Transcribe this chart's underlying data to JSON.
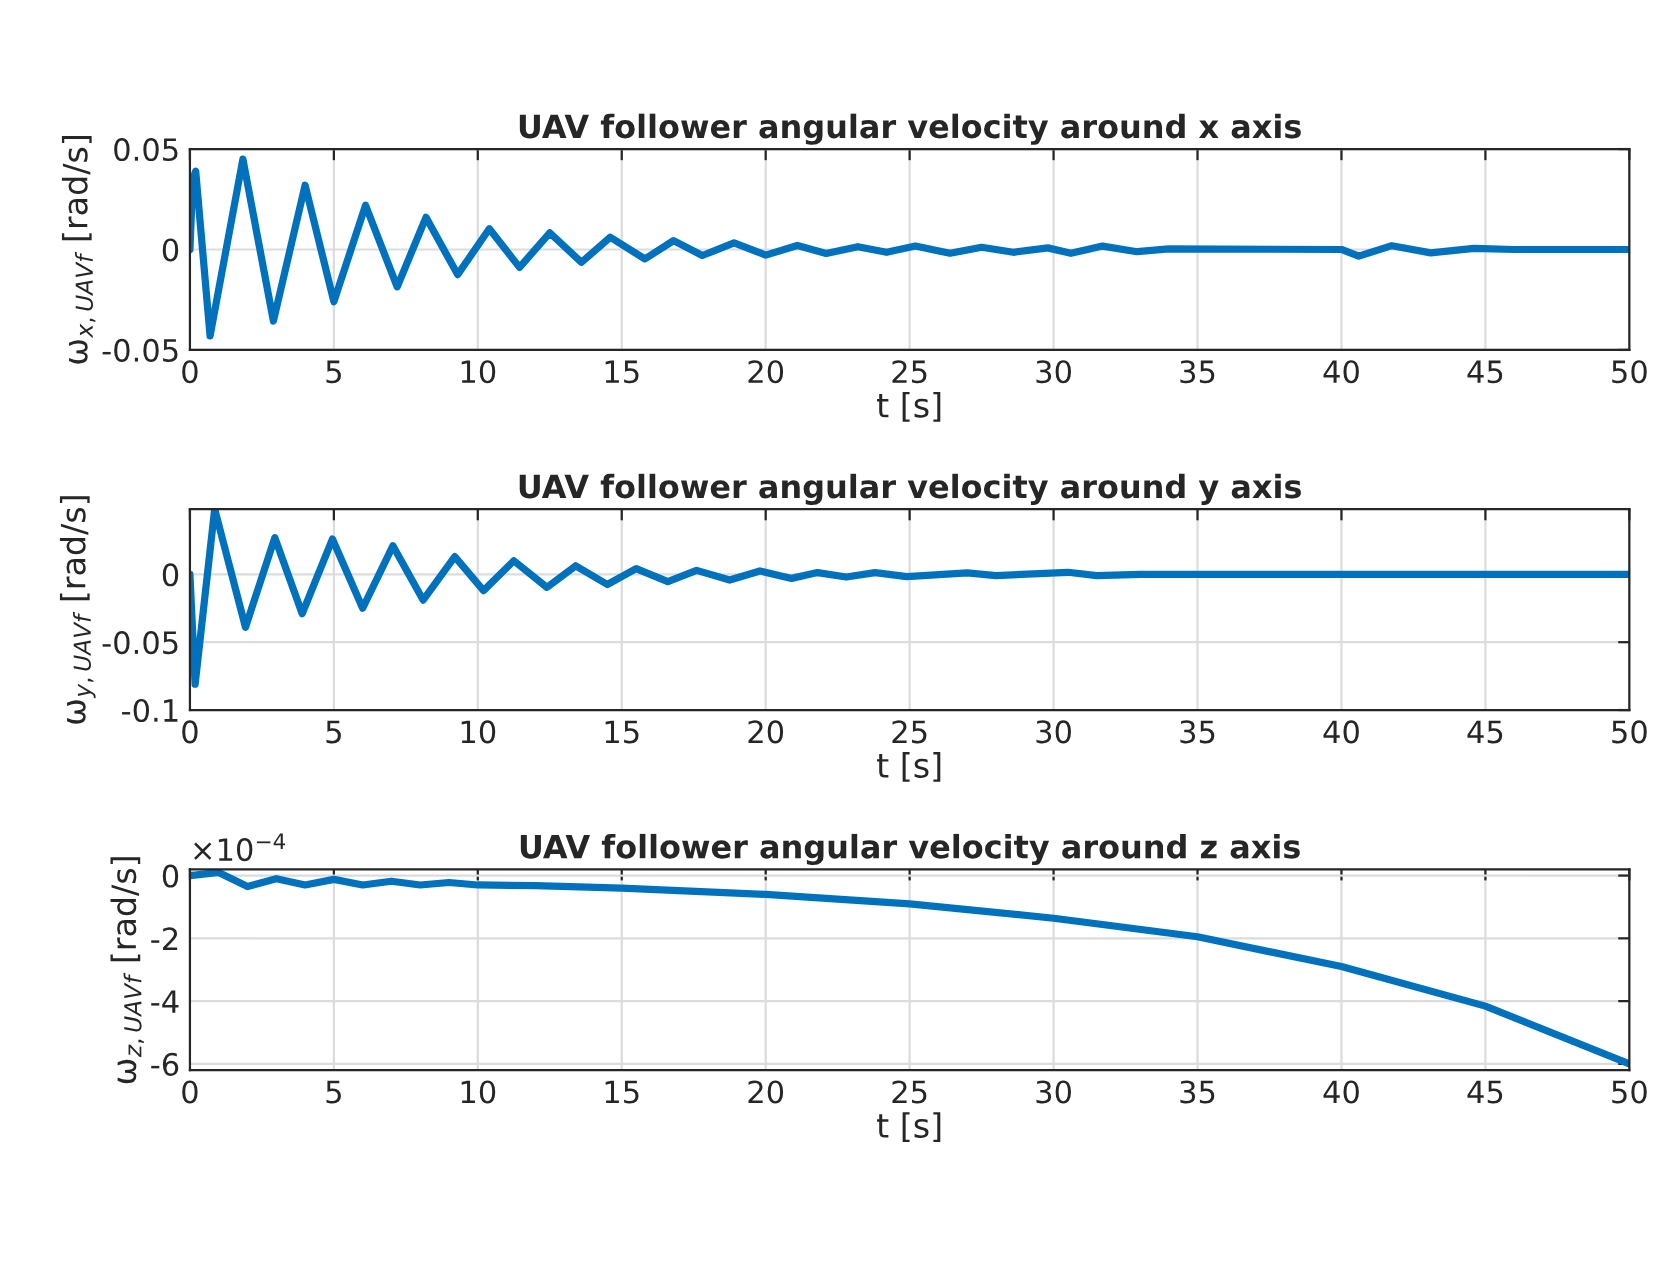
{
  "chart_data": [
    {
      "type": "line",
      "title": "UAV follower angular velocity around x axis",
      "xlabel": "t [s]",
      "ylabel": "ω$_{x,UAVf}$ [rad/s]",
      "grid": true,
      "xlim": [
        0,
        50
      ],
      "ylim": [
        -0.05,
        0.05
      ],
      "xticks": [
        0,
        5,
        10,
        15,
        20,
        25,
        30,
        35,
        40,
        45,
        50
      ],
      "yticks": [
        -0.05,
        0,
        0.05
      ],
      "series": [
        {
          "color": "#0072bd",
          "x": [
            0,
            0.1,
            0.2,
            0.7,
            1.84,
            2.9,
            4.0,
            5.0,
            6.1,
            7.2,
            8.2,
            9.3,
            10.4,
            11.45,
            12.5,
            13.6,
            14.6,
            15.8,
            16.8,
            17.8,
            18.9,
            20.0,
            21.1,
            22.1,
            23.2,
            24.2,
            25.2,
            26.4,
            27.5,
            28.6,
            29.8,
            30.6,
            31.7,
            32.9,
            34.0,
            40.0,
            40.6,
            41.75,
            43.1,
            44.6,
            46.0,
            50
          ],
          "values": [
            0,
            0.035,
            0.039,
            -0.043,
            0.045,
            -0.0356,
            0.032,
            -0.026,
            0.022,
            -0.0186,
            0.016,
            -0.0125,
            0.0103,
            -0.0089,
            0.0083,
            -0.0064,
            0.0061,
            -0.0047,
            0.0044,
            -0.003,
            0.0033,
            -0.0028,
            0.002,
            -0.002,
            0.0014,
            -0.0014,
            0.0017,
            -0.0019,
            0.0011,
            -0.0014,
            0.0008,
            -0.0019,
            0.0017,
            -0.0011,
            0.0003,
            0,
            -0.0033,
            0.0019,
            -0.0017,
            0.0006,
            0,
            0
          ]
        }
      ]
    },
    {
      "type": "line",
      "title": "UAV follower angular velocity around y axis",
      "xlabel": "t [s]",
      "ylabel": "ω$_{y,UAVf}$ [rad/s]",
      "grid": true,
      "xlim": [
        0,
        50
      ],
      "ylim": [
        -0.1,
        0.048
      ],
      "xticks": [
        0,
        5,
        10,
        15,
        20,
        25,
        30,
        35,
        40,
        45,
        50
      ],
      "yticks": [
        -0.1,
        -0.05,
        0
      ],
      "series": [
        {
          "color": "#0072bd",
          "x": [
            0,
            0.18,
            0.86,
            1.93,
            2.95,
            3.9,
            4.95,
            6.0,
            7.05,
            8.1,
            9.2,
            10.2,
            11.25,
            12.4,
            13.4,
            14.5,
            15.5,
            16.6,
            17.6,
            18.75,
            19.8,
            20.9,
            21.8,
            22.8,
            23.8,
            24.9,
            27.0,
            28.0,
            30.5,
            31.5,
            33.0,
            50
          ],
          "values": [
            0,
            -0.081,
            0.048,
            -0.039,
            0.027,
            -0.029,
            0.026,
            -0.025,
            0.021,
            -0.019,
            0.013,
            -0.012,
            0.01,
            -0.0096,
            0.0063,
            -0.0075,
            0.0042,
            -0.0054,
            0.0029,
            -0.0042,
            0.0025,
            -0.003,
            0.0013,
            -0.002,
            0.0013,
            -0.0017,
            0.001,
            -0.001,
            0.0015,
            -0.001,
            0,
            0
          ]
        }
      ]
    },
    {
      "type": "line",
      "title": "UAV follower angular velocity around z axis",
      "xlabel": "t [s]",
      "ylabel": "ω$_{z,UAVf}$ [rad/s]",
      "grid": true,
      "xlim": [
        0,
        50
      ],
      "ylim": [
        -6.2,
        0.2
      ],
      "xticks": [
        0,
        5,
        10,
        15,
        20,
        25,
        30,
        35,
        40,
        45,
        50
      ],
      "yticks": [
        -6,
        -4,
        -2,
        0
      ],
      "annotations": [
        "×10$^{−4}$"
      ],
      "series": [
        {
          "color": "#0072bd",
          "x": [
            0,
            1,
            2,
            3,
            4,
            5,
            6,
            7,
            8,
            9,
            10,
            12,
            15,
            20,
            25,
            30,
            35,
            40,
            45,
            50
          ],
          "values": [
            0,
            0.1,
            -0.35,
            -0.1,
            -0.3,
            -0.12,
            -0.3,
            -0.18,
            -0.3,
            -0.22,
            -0.3,
            -0.32,
            -0.4,
            -0.6,
            -0.9,
            -1.36,
            -1.95,
            -2.9,
            -4.16,
            -6.0
          ]
        }
      ]
    }
  ]
}
